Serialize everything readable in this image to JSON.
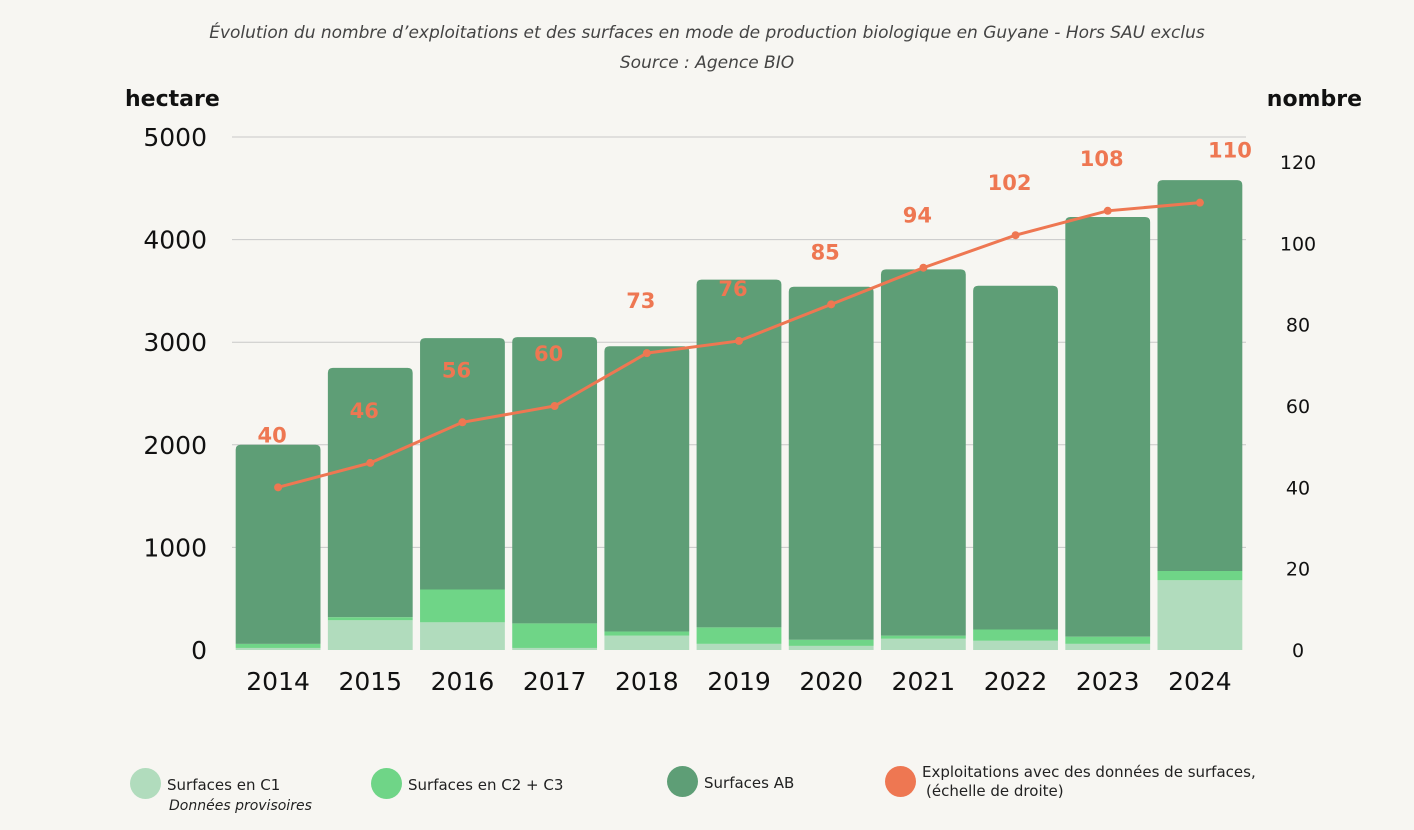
{
  "colors": {
    "c1": "#b1dcbd",
    "c2c3": "#6fd587",
    "ab": "#5e9e76",
    "exploitations": "#ee7752",
    "grid": "#c8c8c8",
    "background": "#f7f6f2"
  },
  "chart_data": {
    "type": "bar",
    "stacked": true,
    "title": "Évolution du nombre d’exploitations et des surfaces en mode de production biologique en Guyane - Hors SAU exclus",
    "subtitle": "Source : Agence BIO",
    "ylabel_left": "hectare",
    "ylabel_right": "nombre",
    "ylim_left": [
      0,
      5000
    ],
    "yticks_left": [
      "0",
      "1000",
      "2000",
      "3000",
      "4000",
      "5000"
    ],
    "ylim_right": [
      0,
      120
    ],
    "yticks_right": [
      "0",
      "20",
      "40",
      "60",
      "80",
      "100",
      "120"
    ],
    "categories": [
      "2014",
      "2015",
      "2016",
      "2017",
      "2018",
      "2019",
      "2020",
      "2021",
      "2022",
      "2023",
      "2024"
    ],
    "series": [
      {
        "name": "Surfaces en C1",
        "axis": "left",
        "values": [
          20,
          290,
          270,
          20,
          140,
          60,
          40,
          110,
          90,
          60,
          680
        ]
      },
      {
        "name": "Surfaces en C2 + C3",
        "axis": "left",
        "values": [
          40,
          30,
          320,
          240,
          40,
          160,
          60,
          30,
          110,
          70,
          90
        ]
      },
      {
        "name": "Surfaces AB",
        "axis": "left",
        "values": [
          1940,
          2430,
          2450,
          2790,
          2780,
          3390,
          3440,
          3570,
          3350,
          4090,
          3810
        ]
      },
      {
        "name": "Exploitations avec des données de surfaces,",
        "name_line2": "(échelle de droite)",
        "axis": "right",
        "type": "line",
        "values": [
          40,
          46,
          56,
          60,
          73,
          76,
          85,
          94,
          102,
          108,
          110
        ],
        "labels": [
          "40",
          "46",
          "56",
          "60",
          "73",
          "76",
          "85",
          "94",
          "102",
          "108",
          "110"
        ]
      }
    ],
    "legend_position": "bottom",
    "legend_note": "Données provisoires",
    "grid": true
  }
}
